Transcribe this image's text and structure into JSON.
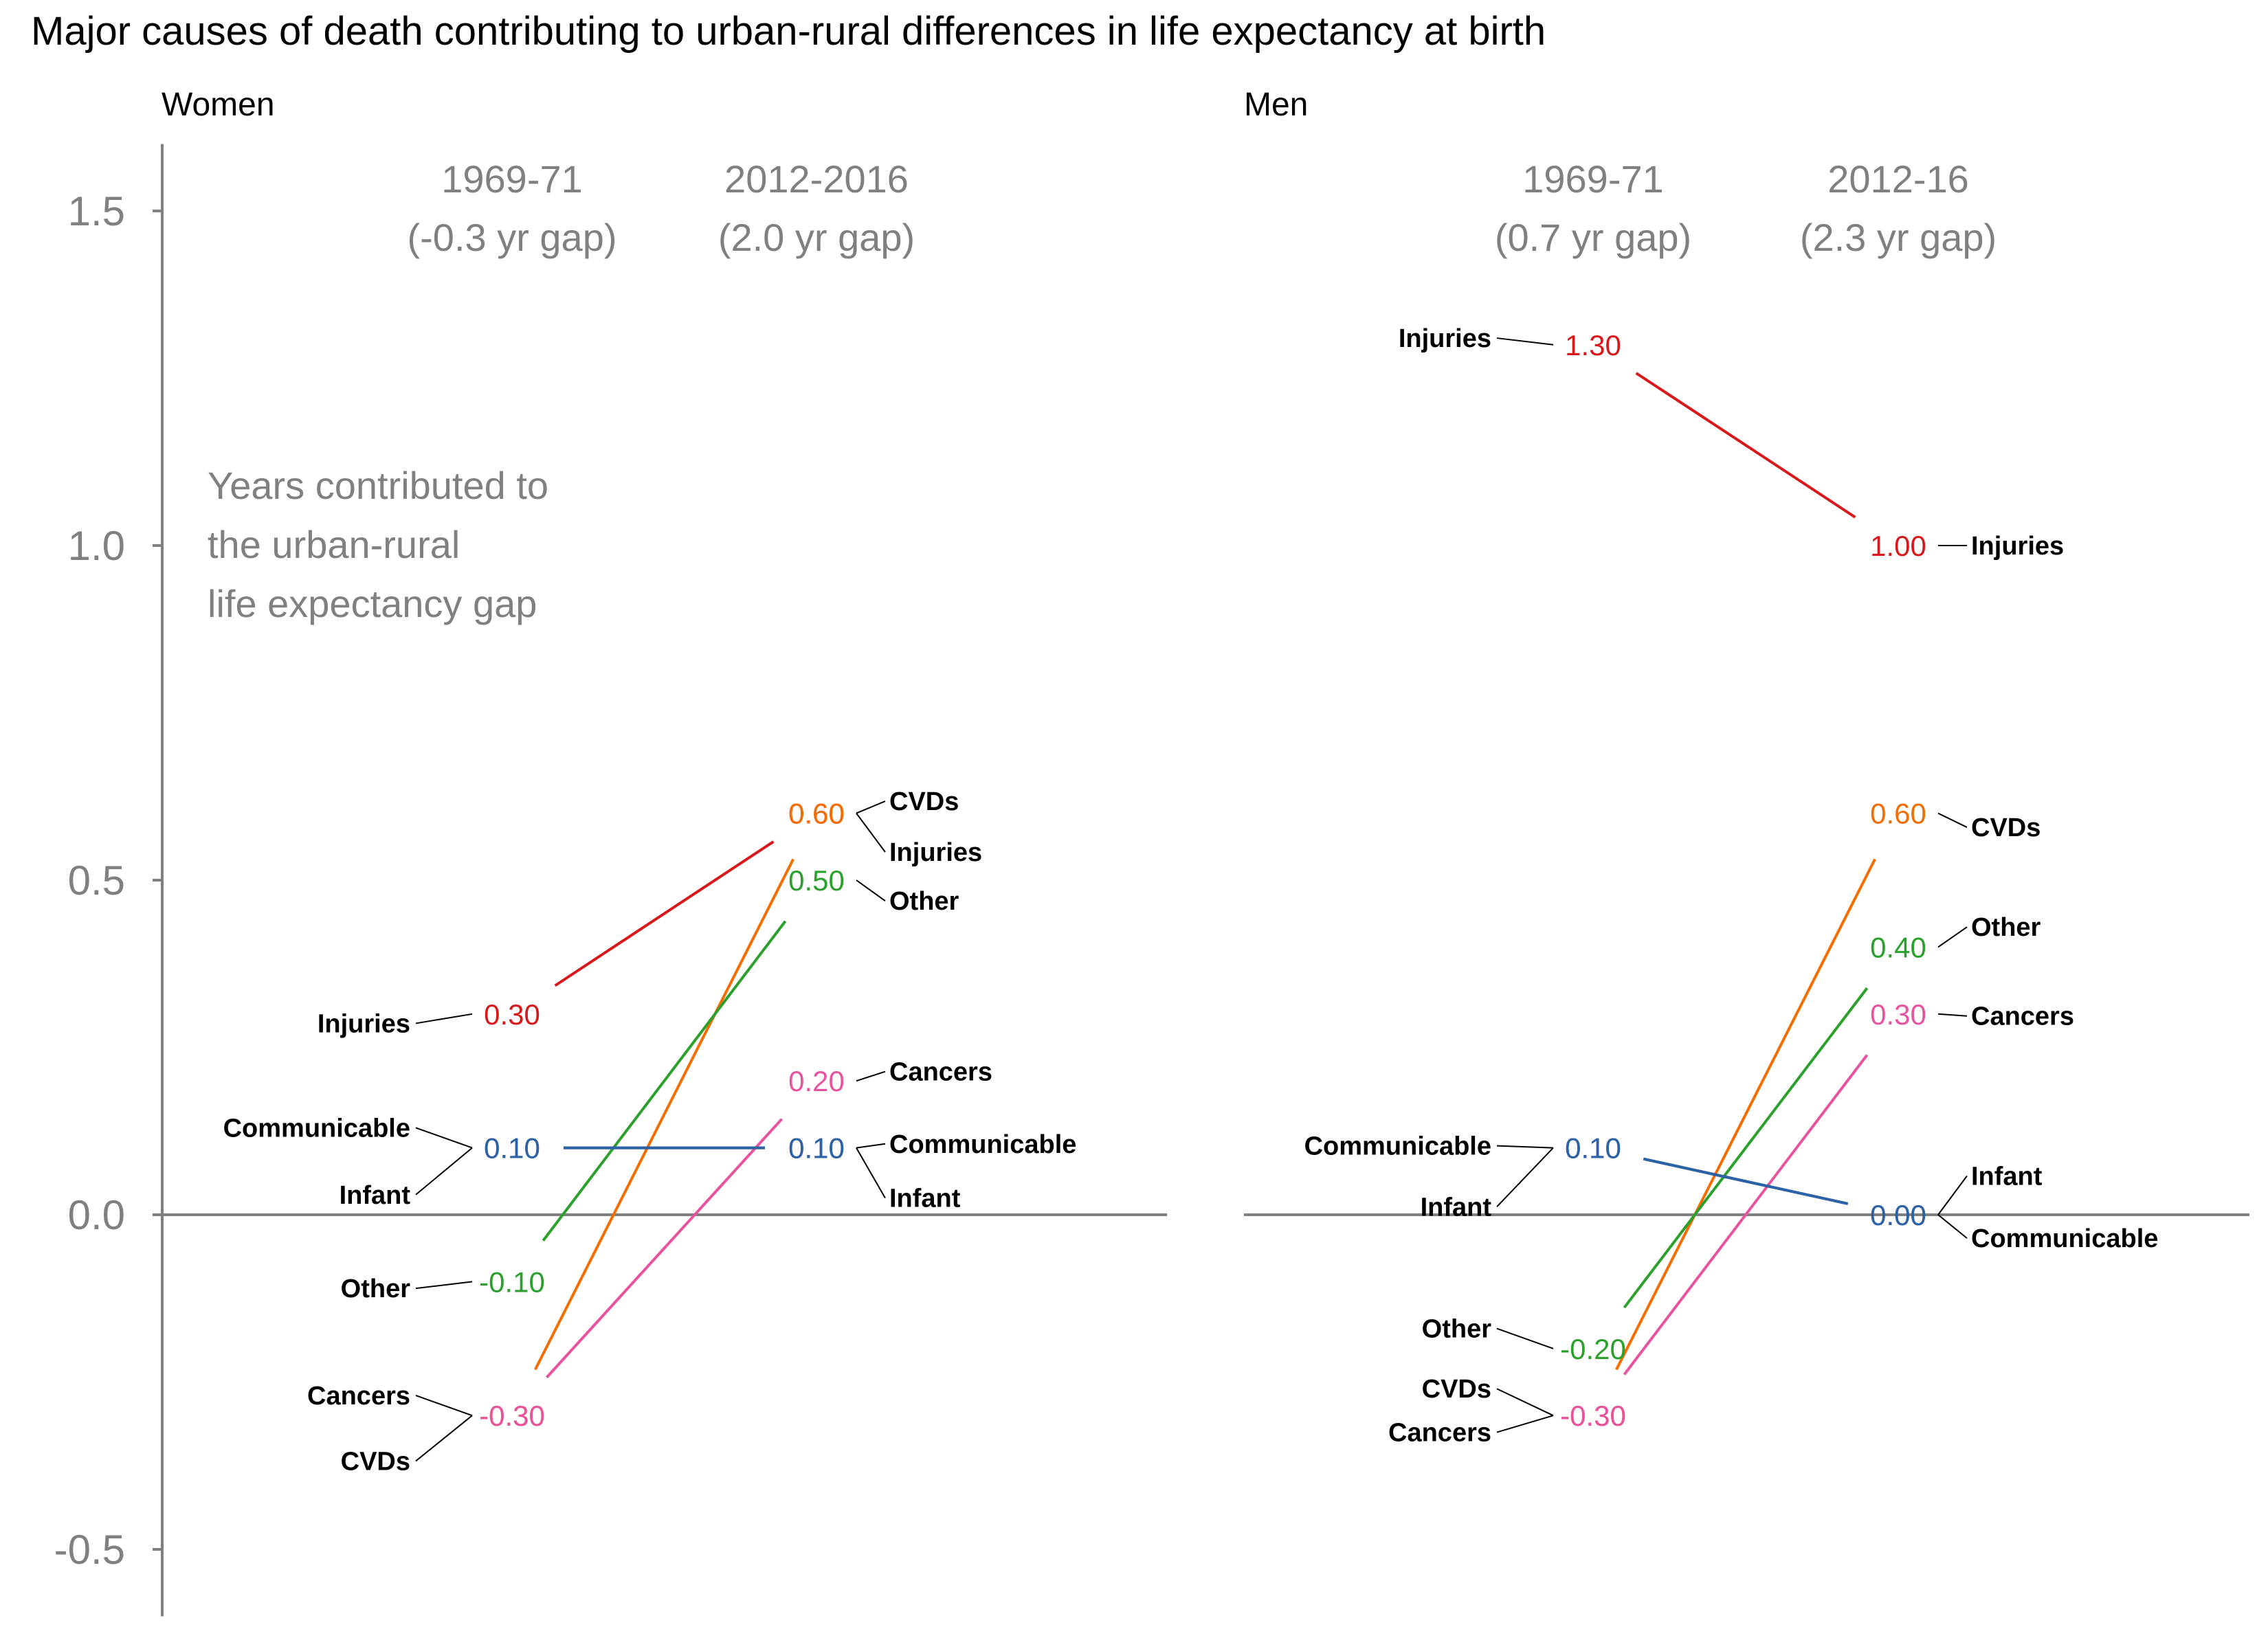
{
  "chart_data": {
    "type": "line",
    "title": "Major causes of death contributing to urban-rural differences in life expectancy at birth",
    "ylim": [
      -0.6,
      1.6
    ],
    "yticks": [
      -0.5,
      0.0,
      0.5,
      1.0,
      1.5
    ],
    "yticklabels": [
      "-0.5",
      "0.0",
      "0.5",
      "1.0",
      "1.5"
    ],
    "grid": false,
    "annotation": [
      "Years contributed to",
      "the urban-rural",
      "life expectancy gap"
    ],
    "colors": {
      "Injuries": "#d7191c",
      "CVDs": "#f46d01",
      "Other": "#2ca02c",
      "Cancers": "#e7539f",
      "Communicable": "#7b2d8e",
      "Infant": "#2b64a6"
    },
    "panels": [
      {
        "name": "Women",
        "periods": [
          {
            "label": "1969-71",
            "gap": "(-0.3 yr gap)"
          },
          {
            "label": "2012-2016",
            "gap": "(2.0 yr gap)"
          }
        ],
        "series": [
          {
            "name": "Injuries",
            "start": 0.3,
            "end": 0.6,
            "start_label": "0.30",
            "end_label": "0.60",
            "start_cat_y": 0.286,
            "end_cat_y": 0.542
          },
          {
            "name": "CVDs",
            "start": -0.3,
            "end": 0.6,
            "start_label": "-0.30",
            "end_label": "0.60",
            "start_cat_y": -0.368,
            "end_cat_y": 0.618
          },
          {
            "name": "Other",
            "start": -0.1,
            "end": 0.5,
            "start_label": "-0.10",
            "end_label": "0.50",
            "start_cat_y": -0.11,
            "end_cat_y": 0.469
          },
          {
            "name": "Cancers",
            "start": -0.3,
            "end": 0.2,
            "start_label": "-0.30",
            "end_label": "0.20",
            "start_cat_y": -0.27,
            "end_cat_y": 0.214
          },
          {
            "name": "Communicable",
            "start": 0.1,
            "end": 0.1,
            "start_label": "0.10",
            "end_label": "0.10",
            "start_cat_y": 0.13,
            "end_cat_y": 0.106
          },
          {
            "name": "Infant",
            "start": 0.1,
            "end": 0.1,
            "start_label": "0.10",
            "end_label": "0.10",
            "start_cat_y": 0.03,
            "end_cat_y": 0.025
          }
        ]
      },
      {
        "name": "Men",
        "periods": [
          {
            "label": "1969-71",
            "gap": "(0.7 yr gap)"
          },
          {
            "label": "2012-16",
            "gap": "(2.3 yr gap)"
          }
        ],
        "series": [
          {
            "name": "Injuries",
            "start": 1.3,
            "end": 1.0,
            "start_label": "1.30",
            "end_label": "1.00",
            "start_cat_y": 1.31,
            "end_cat_y": 1.0
          },
          {
            "name": "CVDs",
            "start": -0.3,
            "end": 0.6,
            "start_label": "-0.30",
            "end_label": "0.60",
            "start_cat_y": -0.26,
            "end_cat_y": 0.579
          },
          {
            "name": "Other",
            "start": -0.2,
            "end": 0.4,
            "start_label": "-0.20",
            "end_label": "0.40",
            "start_cat_y": -0.17,
            "end_cat_y": 0.43
          },
          {
            "name": "Cancers",
            "start": -0.3,
            "end": 0.3,
            "start_label": "-0.30",
            "end_label": "0.30",
            "start_cat_y": -0.325,
            "end_cat_y": 0.297
          },
          {
            "name": "Communicable",
            "start": 0.1,
            "end": 0.0,
            "start_label": "0.10",
            "end_label": "0.00",
            "start_cat_y": 0.103,
            "end_cat_y": -0.035
          },
          {
            "name": "Infant",
            "start": 0.1,
            "end": 0.0,
            "start_label": "0.10",
            "end_label": "0.00",
            "start_cat_y": 0.012,
            "end_cat_y": 0.058
          }
        ]
      }
    ]
  }
}
